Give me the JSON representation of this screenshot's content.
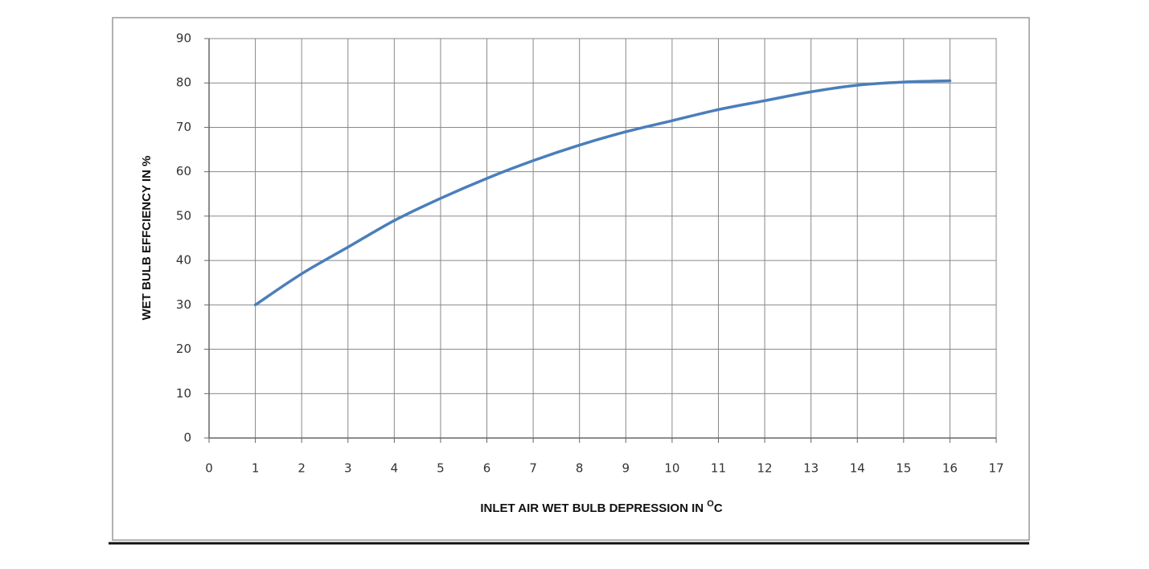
{
  "chart_data": {
    "type": "line",
    "x_label": [
      "INLET AIR WET BULB DEPRESSION IN ",
      "O",
      "C"
    ],
    "y_label": "WET BULB EFFCIENCY IN %",
    "x": [
      1,
      2,
      3,
      4,
      5,
      6,
      7,
      8,
      9,
      10,
      11,
      12,
      13,
      14,
      15,
      16
    ],
    "series": [
      {
        "color": "#4a7ebb",
        "values": [
          30,
          37,
          43,
          49,
          54,
          58.5,
          62.5,
          66,
          69,
          71.5,
          74,
          76,
          78,
          79.5,
          80.2,
          80.5
        ]
      }
    ],
    "xlim": [
      0,
      17
    ],
    "xticks": [
      0,
      1,
      2,
      3,
      4,
      5,
      6,
      7,
      8,
      9,
      10,
      11,
      12,
      13,
      14,
      15,
      16,
      17
    ],
    "ylim": [
      0,
      90
    ],
    "yticks": [
      0,
      10,
      20,
      30,
      40,
      50,
      60,
      70,
      80,
      90
    ],
    "grid": true
  }
}
